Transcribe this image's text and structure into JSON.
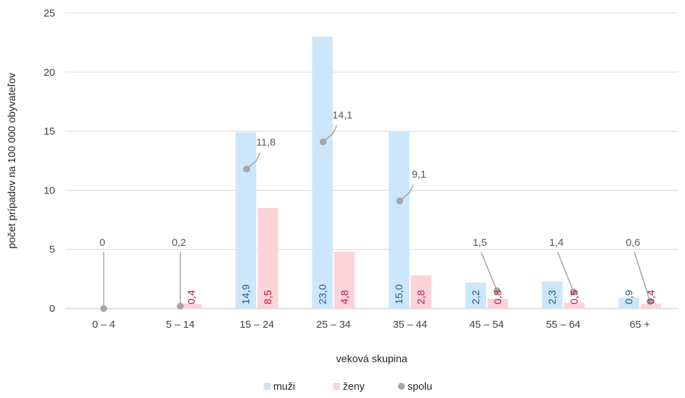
{
  "chart_data": {
    "type": "bar",
    "title": "",
    "xlabel": "veková skupina",
    "ylabel": "počet prípadov na 100 000 obyvateľov",
    "ylim": [
      0,
      25
    ],
    "yticks": [
      "0",
      "5",
      "10",
      "15",
      "20",
      "25"
    ],
    "grid": true,
    "legend_position": "bottom",
    "categories": [
      "0 – 4",
      "5 – 14",
      "15 – 24",
      "25 – 34",
      "35 – 44",
      "45 – 54",
      "55 – 64",
      "65 +"
    ],
    "series": [
      {
        "name": "muži",
        "kind": "bar",
        "color": "#cce7fb",
        "label_color": "#1f5f8b",
        "values": [
          0,
          0,
          14.9,
          23.0,
          15.0,
          2.2,
          2.3,
          0.9
        ],
        "labels": [
          "",
          "",
          "14,9",
          "23,0",
          "15,0",
          "2,2",
          "2,3",
          "0,9"
        ]
      },
      {
        "name": "ženy",
        "kind": "bar",
        "color": "#fbd3d9",
        "label_color": "#c0143c",
        "values": [
          0,
          0.4,
          8.5,
          4.8,
          2.8,
          0.8,
          0.5,
          0.4
        ],
        "labels": [
          "",
          "0,4",
          "8,5",
          "4,8",
          "2,8",
          "0,8",
          "0,5",
          "0,4"
        ]
      },
      {
        "name": "spolu",
        "kind": "point",
        "color": "#a6a6a6",
        "label_color": "#595959",
        "values": [
          0,
          0.2,
          11.8,
          14.1,
          9.1,
          1.5,
          1.4,
          0.6
        ],
        "labels": [
          "0",
          "0,2",
          "11,8",
          "14,1",
          "9,1",
          "1,5",
          "1,4",
          "0,6"
        ]
      }
    ]
  }
}
